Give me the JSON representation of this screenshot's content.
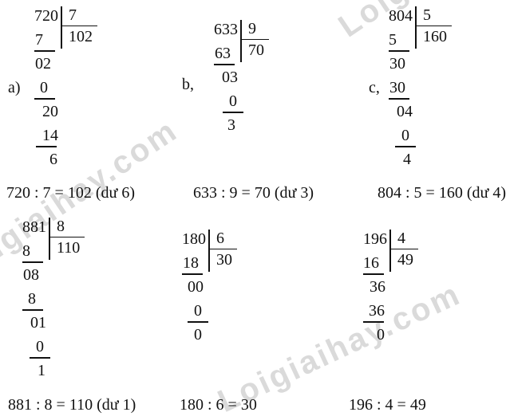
{
  "watermark": {
    "text": "Loigiaihay.com",
    "color": "#dadada"
  },
  "problems": [
    {
      "label": "a)",
      "dividend": "720",
      "divisor": "7",
      "quotient": "102",
      "steps": [
        {
          "text": "7",
          "indent": 1,
          "underline": true
        },
        {
          "text": "02",
          "indent": 1,
          "underline": false
        },
        {
          "text": "0",
          "indent": 7,
          "underline": true
        },
        {
          "text": "20",
          "indent": 10,
          "underline": false
        },
        {
          "text": "14",
          "indent": 10,
          "underline": true
        },
        {
          "text": "6",
          "indent": 19,
          "underline": false
        }
      ],
      "equation": "720 : 7 = 102 (dư 6)"
    },
    {
      "label": "b,",
      "dividend": "633",
      "divisor": "9",
      "quotient": "70",
      "steps": [
        {
          "text": "63",
          "indent": 1,
          "underline": true
        },
        {
          "text": "03",
          "indent": 10,
          "underline": false
        },
        {
          "text": "0",
          "indent": 19,
          "underline": true
        },
        {
          "text": "3",
          "indent": 17,
          "underline": false
        }
      ],
      "equation": "633 : 9 = 70 (dư 3)"
    },
    {
      "label": "c,",
      "dividend": "804",
      "divisor": "5",
      "quotient": "160",
      "steps": [
        {
          "text": "5",
          "indent": 0,
          "underline": true
        },
        {
          "text": "30",
          "indent": 1,
          "underline": false
        },
        {
          "text": "30",
          "indent": 1,
          "underline": true
        },
        {
          "text": "04",
          "indent": 10,
          "underline": false
        },
        {
          "text": "0",
          "indent": 16,
          "underline": true
        },
        {
          "text": "4",
          "indent": 18,
          "underline": false
        }
      ],
      "equation": "804 : 5 = 160 (dư 4)"
    },
    {
      "label": "",
      "dividend": "881",
      "divisor": "8",
      "quotient": "110",
      "steps": [
        {
          "text": "8",
          "indent": 0,
          "underline": true
        },
        {
          "text": "08",
          "indent": 1,
          "underline": false
        },
        {
          "text": "8",
          "indent": 7,
          "underline": true
        },
        {
          "text": "01",
          "indent": 10,
          "underline": false
        },
        {
          "text": "0",
          "indent": 17,
          "underline": true
        },
        {
          "text": "1",
          "indent": 19,
          "underline": false
        }
      ],
      "equation": "881 : 8 = 110 (dư 1)"
    },
    {
      "label": "",
      "dividend": "180",
      "divisor": "6",
      "quotient": "30",
      "steps": [
        {
          "text": "18",
          "indent": 1,
          "underline": true
        },
        {
          "text": "00",
          "indent": 7,
          "underline": false
        },
        {
          "text": "0",
          "indent": 15,
          "underline": true
        },
        {
          "text": "0",
          "indent": 15,
          "underline": false
        }
      ],
      "equation": "180 : 6 = 30"
    },
    {
      "label": "",
      "dividend": "196",
      "divisor": "4",
      "quotient": "49",
      "steps": [
        {
          "text": "16",
          "indent": 0,
          "underline": true
        },
        {
          "text": "36",
          "indent": 8,
          "underline": false
        },
        {
          "text": "36",
          "indent": 7,
          "underline": true
        },
        {
          "text": "0",
          "indent": 17,
          "underline": false
        }
      ],
      "equation": "196 : 4 = 49"
    }
  ]
}
